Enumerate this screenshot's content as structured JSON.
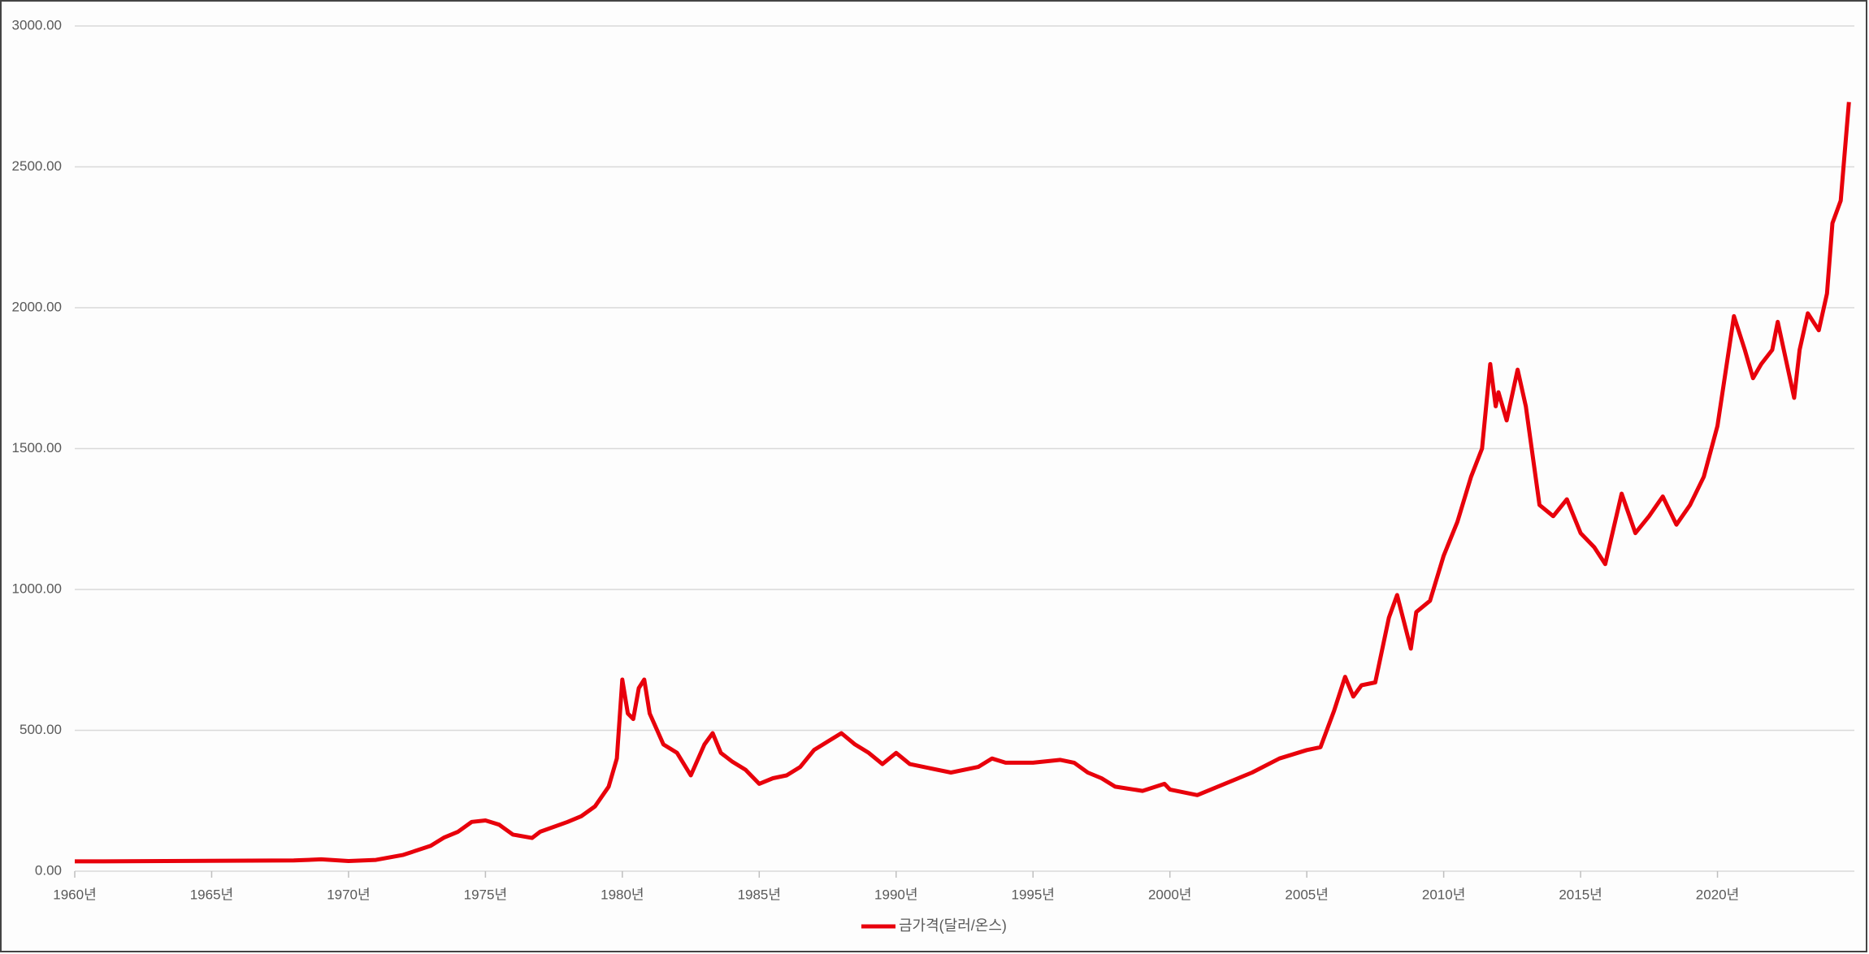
{
  "chart_data": {
    "type": "line",
    "x": [
      1960,
      1961,
      1968,
      1969,
      1970,
      1971,
      1972,
      1973,
      1973.5,
      1974,
      1974.5,
      1975,
      1975.5,
      1976,
      1976.7,
      1977,
      1978,
      1978.5,
      1979,
      1979.5,
      1979.8,
      1980.0,
      1980.2,
      1980.4,
      1980.6,
      1980.8,
      1981,
      1981.5,
      1982,
      1982.5,
      1983,
      1983.3,
      1983.6,
      1984,
      1984.5,
      1985,
      1985.5,
      1986,
      1986.5,
      1987,
      1987.5,
      1988,
      1988.5,
      1989,
      1989.5,
      1990,
      1990.5,
      1991,
      1992,
      1993,
      1993.5,
      1994,
      1995,
      1996,
      1996.5,
      1997,
      1997.5,
      1998,
      1999,
      1999.8,
      2000,
      2001,
      2002,
      2003,
      2004,
      2005,
      2005.5,
      2006,
      2006.4,
      2006.7,
      2007,
      2007.5,
      2008,
      2008.3,
      2008.8,
      2009,
      2009.5,
      2010,
      2010.5,
      2011,
      2011.4,
      2011.7,
      2011.9,
      2012,
      2012.3,
      2012.7,
      2013,
      2013.5,
      2014,
      2014.5,
      2015,
      2015.5,
      2015.9,
      2016.5,
      2017,
      2017.5,
      2018,
      2018.5,
      2019,
      2019.5,
      2020,
      2020.6,
      2021,
      2021.3,
      2021.6,
      2022,
      2022.2,
      2022.8,
      2023,
      2023.3,
      2023.7,
      2024,
      2024.2,
      2024.5,
      2024.8
    ],
    "series": [
      {
        "name": "금가격(달러/온스)",
        "color": "#e8000b",
        "values": [
          35,
          35,
          38,
          42,
          36,
          40,
          58,
          90,
          120,
          140,
          175,
          180,
          165,
          130,
          118,
          140,
          175,
          195,
          230,
          300,
          400,
          680,
          560,
          540,
          650,
          680,
          560,
          450,
          420,
          340,
          450,
          490,
          420,
          390,
          360,
          310,
          330,
          340,
          370,
          430,
          460,
          490,
          450,
          420,
          380,
          420,
          380,
          370,
          350,
          370,
          400,
          385,
          385,
          395,
          385,
          350,
          330,
          300,
          285,
          310,
          290,
          270,
          310,
          350,
          400,
          430,
          440,
          570,
          690,
          620,
          660,
          670,
          900,
          980,
          790,
          920,
          960,
          1120,
          1240,
          1400,
          1500,
          1800,
          1650,
          1700,
          1600,
          1780,
          1650,
          1300,
          1260,
          1320,
          1200,
          1150,
          1090,
          1340,
          1200,
          1260,
          1330,
          1230,
          1300,
          1400,
          1580,
          1970,
          1850,
          1750,
          1800,
          1850,
          1950,
          1680,
          1850,
          1980,
          1920,
          2050,
          2300,
          2380,
          2730
        ]
      }
    ],
    "xlim": [
      1960,
      2025
    ],
    "xticks": [
      {
        "value": 1960,
        "label": "1960년"
      },
      {
        "value": 1965,
        "label": "1965년"
      },
      {
        "value": 1970,
        "label": "1970년"
      },
      {
        "value": 1975,
        "label": "1975년"
      },
      {
        "value": 1980,
        "label": "1980년"
      },
      {
        "value": 1985,
        "label": "1985년"
      },
      {
        "value": 1990,
        "label": "1990년"
      },
      {
        "value": 1995,
        "label": "1995년"
      },
      {
        "value": 2000,
        "label": "2000년"
      },
      {
        "value": 2005,
        "label": "2005년"
      },
      {
        "value": 2010,
        "label": "2010년"
      },
      {
        "value": 2015,
        "label": "2015년"
      },
      {
        "value": 2020,
        "label": "2020년"
      }
    ],
    "ylim": [
      0,
      3000
    ],
    "yticks": [
      {
        "value": 0,
        "label": "0.00"
      },
      {
        "value": 500,
        "label": "500.00"
      },
      {
        "value": 1000,
        "label": "1000.00"
      },
      {
        "value": 1500,
        "label": "1500.00"
      },
      {
        "value": 2000,
        "label": "2000.00"
      },
      {
        "value": 2500,
        "label": "2500.00"
      },
      {
        "value": 3000,
        "label": "3000.00"
      }
    ],
    "grid": true,
    "legend": "bottom"
  }
}
